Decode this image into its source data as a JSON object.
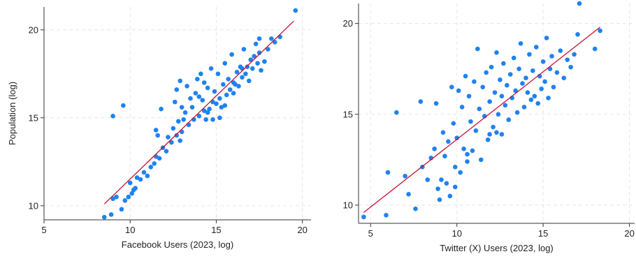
{
  "chart_data": [
    {
      "type": "scatter",
      "xlabel": "Facebook Users (2023, log)",
      "ylabel": "Population (log)",
      "xlim": [
        5,
        20.5
      ],
      "ylim": [
        9.2,
        21.3
      ],
      "xticks": [
        5,
        10,
        15,
        20
      ],
      "yticks": [
        10,
        15,
        20
      ],
      "grid": true,
      "colors": {
        "points": "#1f82f0",
        "fit": "#c8102e"
      },
      "fit_line": {
        "x": [
          8.5,
          19.5
        ],
        "y": [
          10.1,
          20.5
        ]
      },
      "points": [
        [
          8.5,
          9.35
        ],
        [
          8.9,
          9.5
        ],
        [
          9.0,
          10.4
        ],
        [
          9.2,
          10.5
        ],
        [
          9.5,
          9.8
        ],
        [
          9.0,
          15.1
        ],
        [
          9.6,
          15.7
        ],
        [
          9.7,
          10.3
        ],
        [
          9.9,
          10.5
        ],
        [
          10.1,
          10.7
        ],
        [
          10.2,
          10.9
        ],
        [
          10.0,
          11.3
        ],
        [
          10.3,
          11.0
        ],
        [
          10.4,
          11.6
        ],
        [
          10.6,
          11.5
        ],
        [
          10.8,
          11.9
        ],
        [
          11.0,
          11.7
        ],
        [
          11.2,
          12.2
        ],
        [
          11.4,
          12.4
        ],
        [
          11.5,
          12.8
        ],
        [
          11.7,
          12.7
        ],
        [
          11.5,
          14.3
        ],
        [
          11.8,
          15.5
        ],
        [
          11.6,
          14.0
        ],
        [
          11.9,
          13.3
        ],
        [
          12.1,
          13.1
        ],
        [
          12.2,
          13.9
        ],
        [
          12.4,
          13.6
        ],
        [
          12.5,
          14.4
        ],
        [
          12.7,
          14.0
        ],
        [
          12.8,
          14.8
        ],
        [
          12.9,
          13.7
        ],
        [
          13.0,
          14.2
        ],
        [
          12.6,
          15.9
        ],
        [
          12.7,
          16.6
        ],
        [
          12.9,
          17.1
        ],
        [
          13.1,
          14.9
        ],
        [
          13.2,
          15.3
        ],
        [
          13.3,
          16.8
        ],
        [
          13.4,
          14.6
        ],
        [
          13.5,
          16.1
        ],
        [
          13.6,
          15.6
        ],
        [
          13.7,
          14.9
        ],
        [
          13.8,
          16.4
        ],
        [
          13.9,
          17.2
        ],
        [
          14.0,
          15.1
        ],
        [
          14.1,
          17.5
        ],
        [
          14.2,
          16.0
        ],
        [
          14.3,
          15.4
        ],
        [
          14.3,
          17.0
        ],
        [
          14.4,
          14.9
        ],
        [
          14.5,
          16.7
        ],
        [
          14.6,
          15.5
        ],
        [
          14.7,
          17.8
        ],
        [
          14.8,
          15.9
        ],
        [
          14.9,
          16.5
        ],
        [
          15.0,
          15.8
        ],
        [
          15.1,
          17.5
        ],
        [
          15.2,
          16.1
        ],
        [
          15.3,
          15.6
        ],
        [
          15.4,
          16.9
        ],
        [
          15.5,
          18.1
        ],
        [
          15.6,
          16.3
        ],
        [
          15.7,
          17.2
        ],
        [
          15.8,
          16.6
        ],
        [
          15.9,
          18.6
        ],
        [
          16.0,
          17.0
        ],
        [
          16.1,
          16.9
        ],
        [
          16.2,
          17.6
        ],
        [
          16.3,
          16.8
        ],
        [
          16.4,
          17.9
        ],
        [
          16.5,
          17.3
        ],
        [
          16.6,
          18.9
        ],
        [
          16.7,
          17.5
        ],
        [
          16.8,
          17.9
        ],
        [
          16.9,
          17.1
        ],
        [
          17.0,
          18.3
        ],
        [
          17.1,
          17.8
        ],
        [
          17.2,
          18.5
        ],
        [
          17.3,
          19.2
        ],
        [
          17.4,
          18.1
        ],
        [
          17.5,
          18.7
        ],
        [
          17.6,
          17.7
        ],
        [
          17.8,
          18.2
        ],
        [
          18.0,
          18.9
        ],
        [
          18.2,
          19.5
        ],
        [
          18.4,
          19.3
        ],
        [
          18.7,
          19.6
        ],
        [
          19.6,
          21.1
        ],
        [
          14.0,
          16.2
        ],
        [
          14.5,
          15.3
        ],
        [
          15.2,
          15.0
        ],
        [
          16.0,
          16.4
        ],
        [
          13.0,
          15.6
        ],
        [
          15.5,
          15.7
        ],
        [
          14.8,
          14.9
        ],
        [
          16.5,
          17.8
        ],
        [
          17.5,
          19.5
        ]
      ]
    },
    {
      "type": "scatter",
      "xlabel": "Twitter (X) Users (2023, log)",
      "ylabel": "",
      "xlim": [
        4.3,
        20.3
      ],
      "ylim": [
        9.0,
        21.1
      ],
      "xticks": [
        5,
        10,
        15,
        20
      ],
      "yticks": [
        10,
        15,
        20
      ],
      "grid": true,
      "colors": {
        "points": "#1f82f0",
        "fit": "#c8102e"
      },
      "fit_line": {
        "x": [
          4.6,
          18.3
        ],
        "y": [
          9.6,
          19.8
        ]
      },
      "points": [
        [
          4.6,
          9.35
        ],
        [
          5.9,
          9.45
        ],
        [
          6.0,
          11.8
        ],
        [
          6.5,
          15.1
        ],
        [
          7.0,
          11.6
        ],
        [
          7.2,
          10.6
        ],
        [
          7.6,
          9.8
        ],
        [
          7.9,
          15.7
        ],
        [
          8.0,
          12.1
        ],
        [
          8.3,
          11.4
        ],
        [
          8.5,
          12.6
        ],
        [
          8.7,
          13.1
        ],
        [
          8.8,
          15.6
        ],
        [
          8.9,
          10.9
        ],
        [
          9.0,
          10.3
        ],
        [
          9.1,
          11.4
        ],
        [
          9.2,
          14.0
        ],
        [
          9.3,
          12.7
        ],
        [
          9.4,
          11.2
        ],
        [
          9.5,
          13.5
        ],
        [
          9.6,
          10.5
        ],
        [
          9.7,
          16.5
        ],
        [
          9.8,
          14.5
        ],
        [
          9.9,
          12.1
        ],
        [
          10.0,
          13.7
        ],
        [
          10.1,
          16.3
        ],
        [
          10.2,
          11.8
        ],
        [
          10.3,
          15.4
        ],
        [
          10.4,
          13.1
        ],
        [
          10.5,
          17.1
        ],
        [
          10.6,
          12.4
        ],
        [
          10.7,
          16.0
        ],
        [
          10.8,
          14.6
        ],
        [
          10.9,
          13.0
        ],
        [
          11.0,
          16.8
        ],
        [
          11.1,
          14.1
        ],
        [
          11.2,
          18.6
        ],
        [
          11.3,
          15.3
        ],
        [
          11.4,
          12.5
        ],
        [
          11.5,
          16.5
        ],
        [
          11.6,
          14.9
        ],
        [
          11.7,
          17.3
        ],
        [
          11.8,
          13.6
        ],
        [
          11.9,
          15.7
        ],
        [
          12.0,
          17.6
        ],
        [
          12.1,
          14.3
        ],
        [
          12.2,
          16.2
        ],
        [
          12.3,
          18.4
        ],
        [
          12.4,
          15.0
        ],
        [
          12.5,
          16.9
        ],
        [
          12.6,
          13.9
        ],
        [
          12.7,
          17.8
        ],
        [
          12.8,
          15.5
        ],
        [
          12.9,
          16.6
        ],
        [
          13.0,
          14.7
        ],
        [
          13.1,
          17.2
        ],
        [
          13.2,
          15.9
        ],
        [
          13.3,
          18.1
        ],
        [
          13.4,
          16.3
        ],
        [
          13.5,
          15.1
        ],
        [
          13.6,
          17.5
        ],
        [
          13.7,
          18.9
        ],
        [
          13.8,
          16.7
        ],
        [
          13.9,
          15.4
        ],
        [
          14.0,
          17.0
        ],
        [
          14.1,
          16.2
        ],
        [
          14.2,
          18.3
        ],
        [
          14.3,
          15.8
        ],
        [
          14.4,
          17.4
        ],
        [
          14.5,
          16.0
        ],
        [
          14.6,
          18.7
        ],
        [
          14.7,
          15.6
        ],
        [
          14.8,
          17.1
        ],
        [
          14.9,
          16.4
        ],
        [
          15.0,
          17.9
        ],
        [
          15.1,
          16.8
        ],
        [
          15.2,
          19.2
        ],
        [
          15.3,
          15.9
        ],
        [
          15.4,
          17.5
        ],
        [
          15.5,
          18.2
        ],
        [
          15.6,
          16.5
        ],
        [
          15.8,
          17.3
        ],
        [
          16.0,
          18.5
        ],
        [
          16.2,
          17.0
        ],
        [
          16.4,
          18.0
        ],
        [
          16.6,
          17.6
        ],
        [
          16.8,
          18.3
        ],
        [
          17.0,
          19.4
        ],
        [
          17.1,
          21.1
        ],
        [
          18.0,
          18.6
        ],
        [
          18.3,
          19.6
        ],
        [
          10.6,
          12.8
        ],
        [
          11.9,
          13.9
        ],
        [
          12.3,
          14.0
        ],
        [
          9.9,
          11.0
        ],
        [
          12.6,
          16.0
        ]
      ]
    }
  ]
}
